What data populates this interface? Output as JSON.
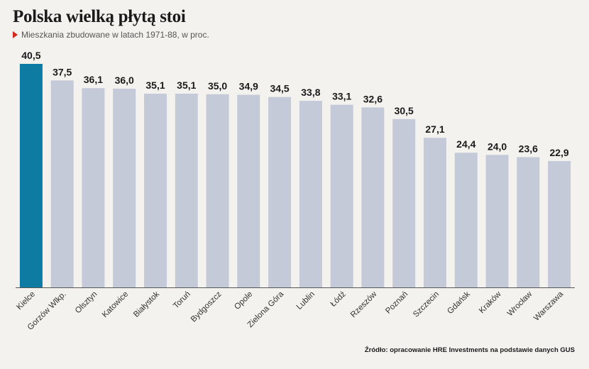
{
  "header": {
    "title": "Polska wielką płytą stoi",
    "subtitle": "Mieszkania zbudowane w latach 1971-88, w proc."
  },
  "footer": {
    "source": "Źródło: opracowanie HRE Investments na podstawie danych GUS"
  },
  "colors": {
    "highlight": "#0d7ba2",
    "bar": "#c4cad8",
    "axis": "#555555",
    "marker": "#d7261e"
  },
  "chart_data": {
    "type": "bar",
    "title": "Polska wielką płytą stoi",
    "subtitle": "Mieszkania zbudowane w latach 1971-88, w proc.",
    "categories": [
      "Kielce",
      "Gorzów Wlkp.",
      "Olsztyn",
      "Katowice",
      "Białystok",
      "Toruń",
      "Bydgoszcz",
      "Opole",
      "Zielona Góra",
      "Lublin",
      "Łódź",
      "Rzeszów",
      "Poznań",
      "Szczecin",
      "Gdańsk",
      "Kraków",
      "Wrocław",
      "Warszawa"
    ],
    "values": [
      40.5,
      37.5,
      36.1,
      36.0,
      35.1,
      35.1,
      35.0,
      34.9,
      34.5,
      33.8,
      33.1,
      32.6,
      30.5,
      27.1,
      24.4,
      24.0,
      23.6,
      22.9
    ],
    "value_labels": [
      "40,5",
      "37,5",
      "36,1",
      "36,0",
      "35,1",
      "35,1",
      "35,0",
      "34,9",
      "34,5",
      "33,8",
      "33,1",
      "32,6",
      "30,5",
      "27,1",
      "24,4",
      "24,0",
      "23,6",
      "22,9"
    ],
    "highlighted_category": "Kielce",
    "ylim": [
      0,
      40.5
    ],
    "grid": false,
    "legend": "none"
  }
}
